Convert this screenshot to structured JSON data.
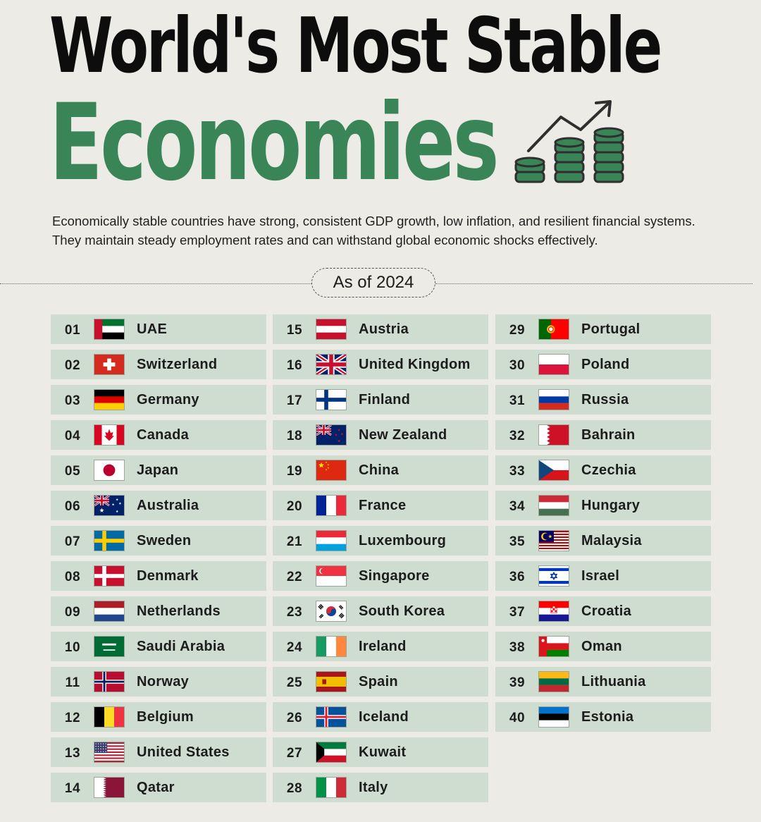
{
  "title": {
    "line1": "World's Most Stable",
    "line2": "Economies"
  },
  "intro": "Economically stable countries have strong, consistent GDP growth, low inflation, and resilient financial systems. They maintain steady employment rates and can withstand global economic shocks effectively.",
  "as_of": "As of 2024",
  "colors": {
    "green": "#3a8558",
    "row_bg": "#cfdcd0",
    "page_bg": "#ecebe6"
  },
  "icon": "coins-growth-icon",
  "countries": [
    {
      "rank": "01",
      "name": "UAE",
      "flag": "ae"
    },
    {
      "rank": "02",
      "name": "Switzerland",
      "flag": "ch"
    },
    {
      "rank": "03",
      "name": "Germany",
      "flag": "de"
    },
    {
      "rank": "04",
      "name": "Canada",
      "flag": "ca"
    },
    {
      "rank": "05",
      "name": "Japan",
      "flag": "jp"
    },
    {
      "rank": "06",
      "name": "Australia",
      "flag": "au"
    },
    {
      "rank": "07",
      "name": "Sweden",
      "flag": "se"
    },
    {
      "rank": "08",
      "name": "Denmark",
      "flag": "dk"
    },
    {
      "rank": "09",
      "name": "Netherlands",
      "flag": "nl"
    },
    {
      "rank": "10",
      "name": "Saudi Arabia",
      "flag": "sa"
    },
    {
      "rank": "11",
      "name": "Norway",
      "flag": "no"
    },
    {
      "rank": "12",
      "name": "Belgium",
      "flag": "be"
    },
    {
      "rank": "13",
      "name": "United States",
      "flag": "us"
    },
    {
      "rank": "14",
      "name": "Qatar",
      "flag": "qa"
    },
    {
      "rank": "15",
      "name": "Austria",
      "flag": "at"
    },
    {
      "rank": "16",
      "name": "United Kingdom",
      "flag": "gb"
    },
    {
      "rank": "17",
      "name": "Finland",
      "flag": "fi"
    },
    {
      "rank": "18",
      "name": "New Zealand",
      "flag": "nz"
    },
    {
      "rank": "19",
      "name": "China",
      "flag": "cn"
    },
    {
      "rank": "20",
      "name": "France",
      "flag": "fr"
    },
    {
      "rank": "21",
      "name": "Luxembourg",
      "flag": "lu"
    },
    {
      "rank": "22",
      "name": "Singapore",
      "flag": "sg"
    },
    {
      "rank": "23",
      "name": "South Korea",
      "flag": "kr"
    },
    {
      "rank": "24",
      "name": "Ireland",
      "flag": "ie"
    },
    {
      "rank": "25",
      "name": "Spain",
      "flag": "es"
    },
    {
      "rank": "26",
      "name": "Iceland",
      "flag": "is"
    },
    {
      "rank": "27",
      "name": "Kuwait",
      "flag": "kw"
    },
    {
      "rank": "28",
      "name": "Italy",
      "flag": "it"
    },
    {
      "rank": "29",
      "name": "Portugal",
      "flag": "pt"
    },
    {
      "rank": "30",
      "name": "Poland",
      "flag": "pl"
    },
    {
      "rank": "31",
      "name": "Russia",
      "flag": "ru"
    },
    {
      "rank": "32",
      "name": "Bahrain",
      "flag": "bh"
    },
    {
      "rank": "33",
      "name": "Czechia",
      "flag": "cz"
    },
    {
      "rank": "34",
      "name": "Hungary",
      "flag": "hu"
    },
    {
      "rank": "35",
      "name": "Malaysia",
      "flag": "my"
    },
    {
      "rank": "36",
      "name": "Israel",
      "flag": "il"
    },
    {
      "rank": "37",
      "name": "Croatia",
      "flag": "hr"
    },
    {
      "rank": "38",
      "name": "Oman",
      "flag": "om"
    },
    {
      "rank": "39",
      "name": "Lithuania",
      "flag": "lt"
    },
    {
      "rank": "40",
      "name": "Estonia",
      "flag": "ee"
    }
  ]
}
